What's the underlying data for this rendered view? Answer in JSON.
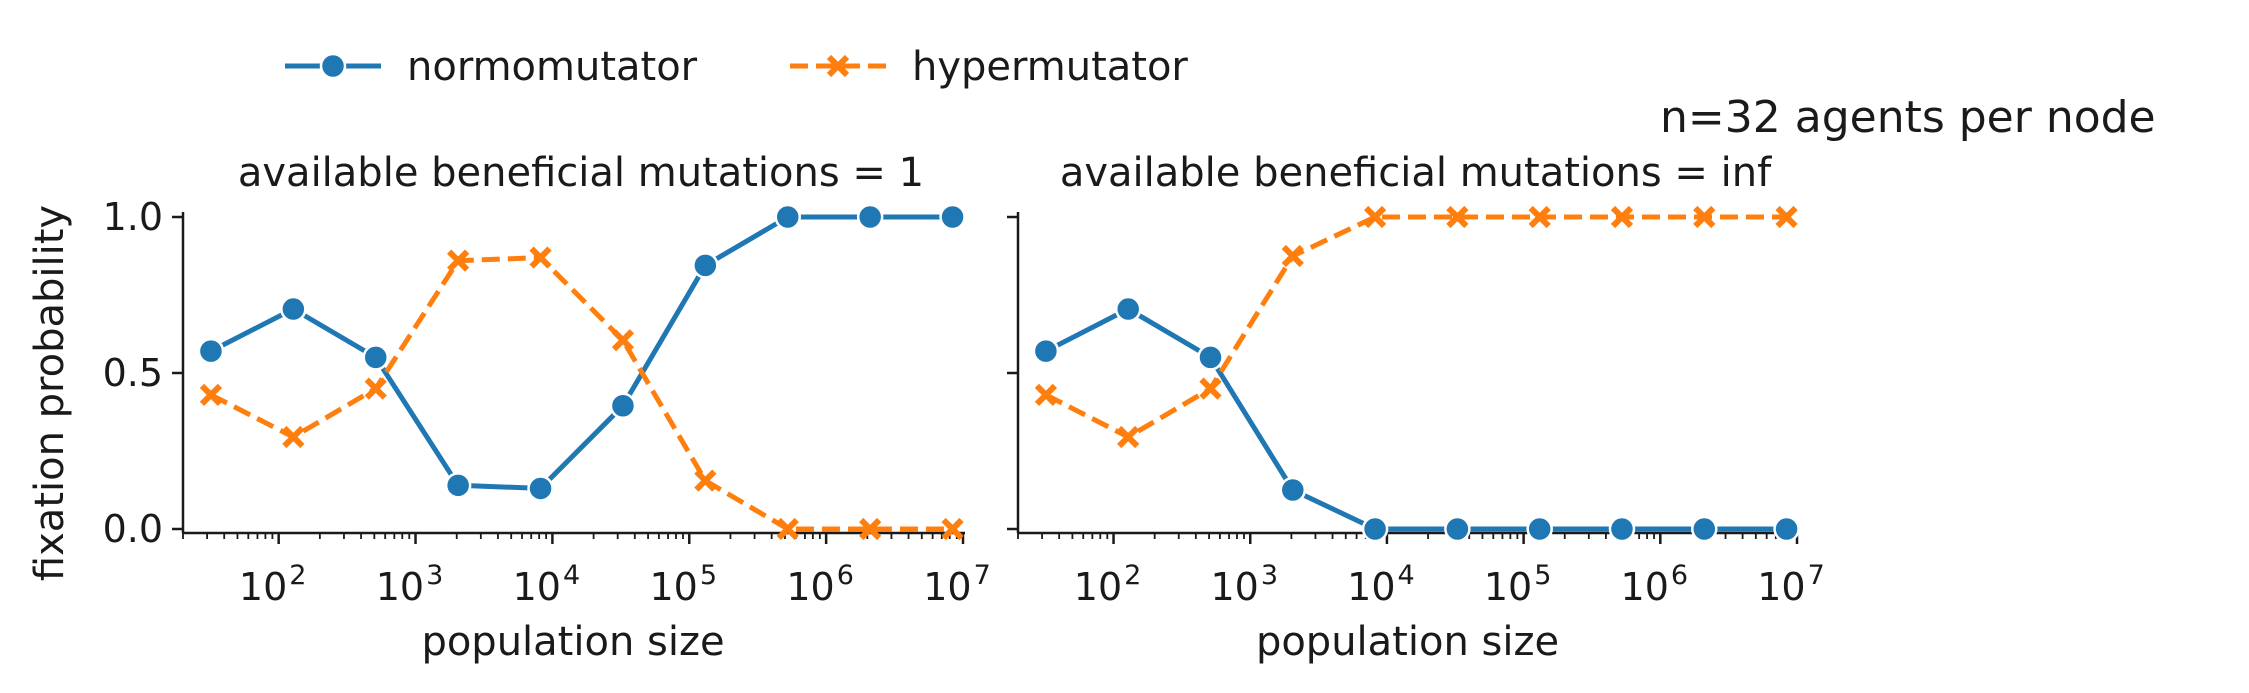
{
  "figure": {
    "suptitle": "n=32 agents per node",
    "legend": {
      "placement": "top-left",
      "entries": [
        {
          "label": "normomutator",
          "color": "#1f77b4",
          "marker": "circle",
          "line": "solid"
        },
        {
          "label": "hypermutator",
          "color": "#ff7f0e",
          "marker": "x",
          "line": "dashed"
        }
      ]
    },
    "x_ticks": [
      {
        "base": "10",
        "exp": "2",
        "value": 100
      },
      {
        "base": "10",
        "exp": "3",
        "value": 1000
      },
      {
        "base": "10",
        "exp": "4",
        "value": 10000
      },
      {
        "base": "10",
        "exp": "5",
        "value": 100000
      },
      {
        "base": "10",
        "exp": "6",
        "value": 1000000
      },
      {
        "base": "10",
        "exp": "7",
        "value": 10000000
      }
    ],
    "y_ticks": [
      "0.0",
      "0.5",
      "1.0"
    ]
  },
  "chart_data": [
    {
      "type": "line",
      "title": "available beneficial mutations = 1",
      "xlabel": "population size",
      "ylabel": "fixation probability",
      "xscale": "log",
      "xlim": [
        20,
        10000000
      ],
      "ylim": [
        0,
        1
      ],
      "grid": false,
      "x": [
        32,
        128,
        512,
        2048,
        8192,
        32768,
        131072,
        524288,
        2097152,
        8388608
      ],
      "series": [
        {
          "name": "normomutator",
          "values": [
            0.57,
            0.705,
            0.55,
            0.14,
            0.13,
            0.395,
            0.845,
            1.0,
            1.0,
            1.0
          ]
        },
        {
          "name": "hypermutator",
          "values": [
            0.43,
            0.295,
            0.45,
            0.86,
            0.87,
            0.605,
            0.155,
            0.0,
            0.0,
            0.0
          ]
        }
      ]
    },
    {
      "type": "line",
      "title": "available beneficial mutations = inf",
      "xlabel": "population size",
      "ylabel": "",
      "xscale": "log",
      "xlim": [
        20,
        10000000
      ],
      "ylim": [
        0,
        1
      ],
      "grid": false,
      "x": [
        32,
        128,
        512,
        2048,
        8192,
        32768,
        131072,
        524288,
        2097152,
        8388608
      ],
      "series": [
        {
          "name": "normomutator",
          "values": [
            0.57,
            0.705,
            0.55,
            0.125,
            0.0,
            0.0,
            0.0,
            0.0,
            0.0,
            0.0
          ]
        },
        {
          "name": "hypermutator",
          "values": [
            0.43,
            0.295,
            0.45,
            0.875,
            1.0,
            1.0,
            1.0,
            1.0,
            1.0,
            1.0
          ]
        }
      ]
    }
  ]
}
